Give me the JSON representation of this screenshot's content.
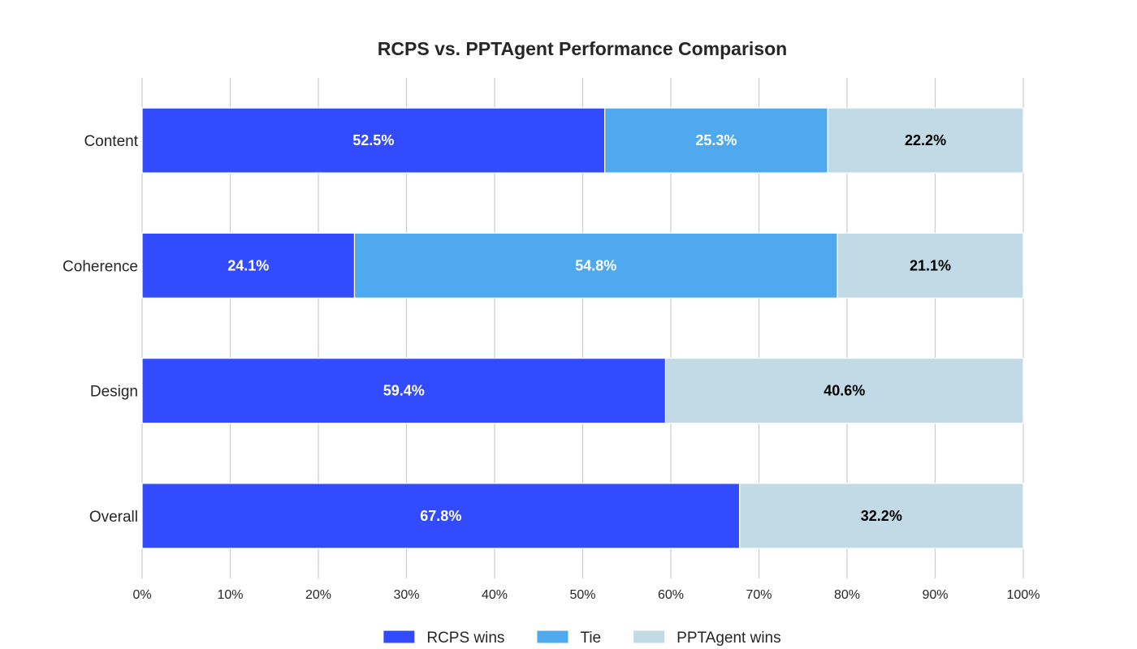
{
  "chart_data": {
    "type": "bar",
    "orientation": "horizontal",
    "stacked": true,
    "title": "RCPS vs. PPTAgent Performance Comparison",
    "xlabel": "",
    "ylabel": "",
    "xlim": [
      0,
      100
    ],
    "x_ticks": [
      "0%",
      "10%",
      "20%",
      "30%",
      "40%",
      "50%",
      "60%",
      "70%",
      "80%",
      "90%",
      "100%"
    ],
    "grid": true,
    "legend_position": "bottom-center",
    "categories": [
      "Content",
      "Coherence",
      "Design",
      "Overall"
    ],
    "series": [
      {
        "name": "RCPS wins",
        "color": "#334bff",
        "label_color": "#ffffff",
        "values": [
          52.5,
          24.1,
          59.4,
          67.8
        ],
        "labels": [
          "52.5%",
          "24.1%",
          "59.4%",
          "67.8%"
        ]
      },
      {
        "name": "Tie",
        "color": "#4fa9ef",
        "label_color": "#ffffff",
        "values": [
          25.3,
          54.8,
          0,
          0
        ],
        "labels": [
          "25.3%",
          "54.8%",
          "",
          ""
        ]
      },
      {
        "name": "PPTAgent wins",
        "color": "#c1dae5",
        "label_color": "#000000",
        "values": [
          22.2,
          21.1,
          40.6,
          32.2
        ],
        "labels": [
          "22.2%",
          "21.1%",
          "40.6%",
          "32.2%"
        ]
      }
    ]
  }
}
